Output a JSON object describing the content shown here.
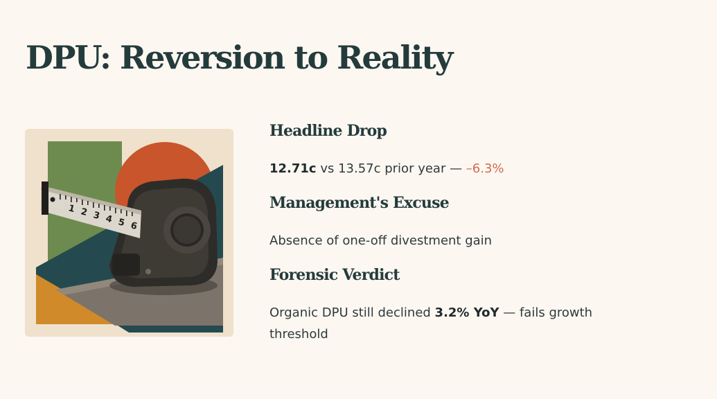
{
  "slide": {
    "title": "DPU: Reversion to Reality"
  },
  "illustration": {
    "icon": "tape-measure-illustration",
    "tape_numbers": [
      "1",
      "2",
      "3",
      "4",
      "5",
      "6"
    ],
    "colors": {
      "background": "#efe1cb",
      "green": "#6e8b4f",
      "orange_circle": "#c8552b",
      "teal": "#244a4f",
      "mustard": "#d08a2a",
      "table": "#7c746a"
    }
  },
  "sections": [
    {
      "heading": "Headline Drop",
      "value_current": "12.71c",
      "mid_text": " vs 13.57c prior year — ",
      "change": "–6.3%"
    },
    {
      "heading": "Management's Excuse",
      "text": "Absence of one-off divestment gain"
    },
    {
      "heading": "Forensic Verdict",
      "text_before": "Organic DPU still declined ",
      "highlight": "3.2% YoY",
      "text_after": " — fails growth threshold"
    }
  ],
  "colors": {
    "background": "#fcf7f1",
    "heading": "#243b3c",
    "accent_negative": "#d4694d"
  }
}
